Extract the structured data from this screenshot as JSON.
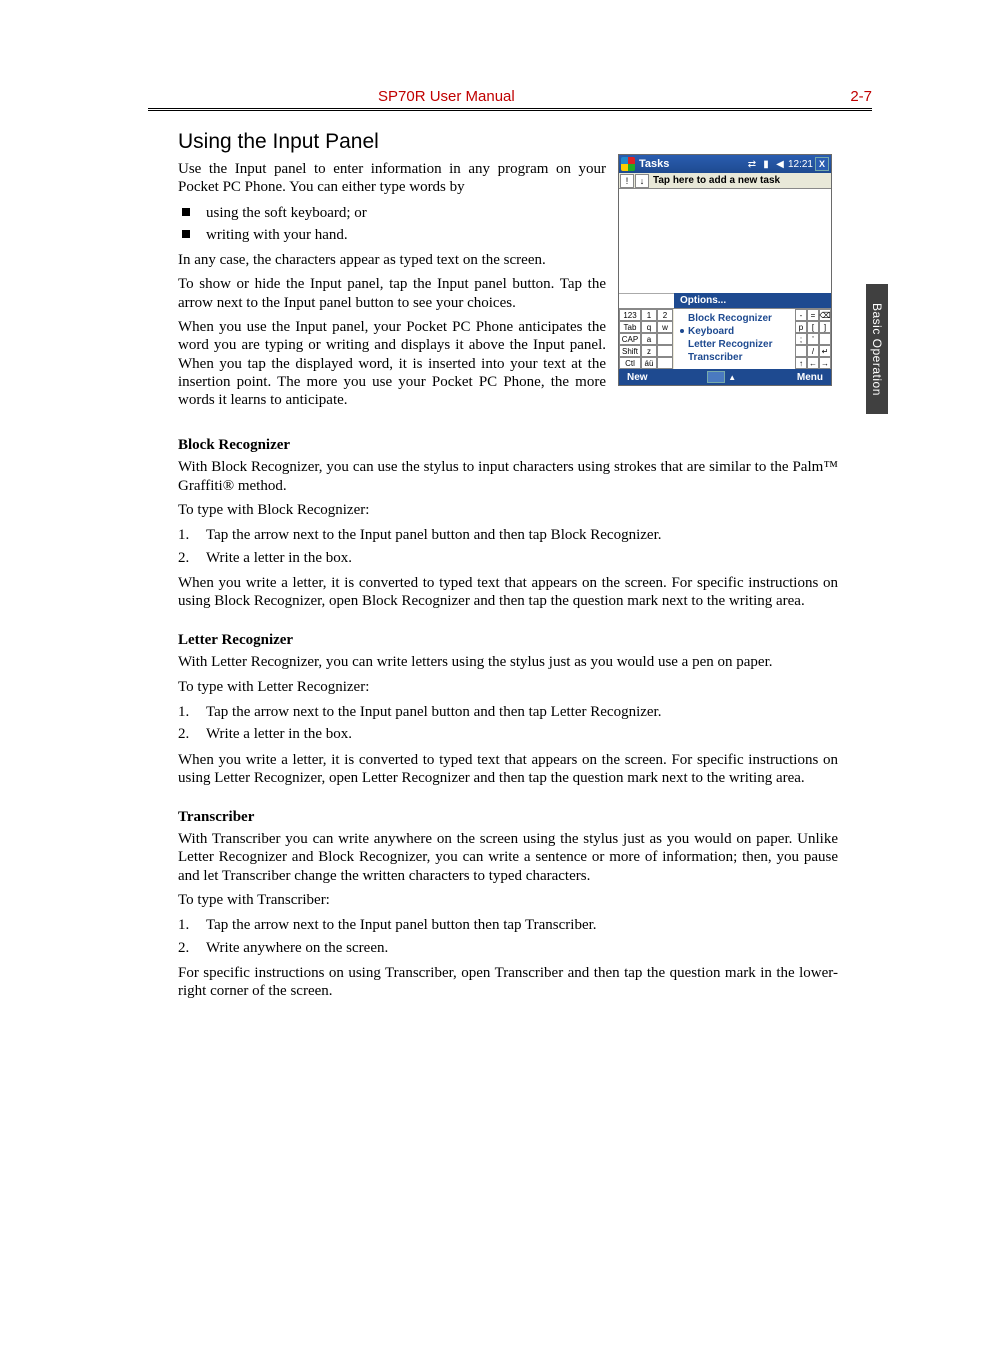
{
  "header": {
    "title": "SP70R User Manual",
    "page_label": "2-7",
    "title_color": "#c00000"
  },
  "side_tab": {
    "label": "Basic Operation",
    "bg": "#404040"
  },
  "h1": "Using the Input Panel",
  "intro": "Use the Input panel to enter information in any program on your Pocket PC Phone. You can either type  words by",
  "intro_bullets": [
    "using the soft keyboard; or",
    "writing with your hand."
  ],
  "p_anycase": "In any case, the characters appear as typed text on the screen.",
  "p_showhide": "To show or hide the Input panel, tap the Input panel button. Tap the arrow next to the Input panel button to see your choices.",
  "p_anticipate": "When you use the Input panel, your Pocket PC Phone anticipates the word you are typing or writing and displays it above the Input panel. When you tap the displayed word, it is inserted into your text at the insertion point. The more you use your Pocket PC Phone, the more words it learns to anticipate.",
  "block": {
    "h": "Block Recognizer",
    "p1": "With Block Recognizer, you can use the stylus to input characters using strokes that are similar to the Palm™ Graffiti® method.",
    "p2": "To type with Block Recognizer:",
    "steps": [
      "Tap the arrow next to the Input panel button and then tap Block Recognizer.",
      "Write a letter in the box."
    ],
    "p3": "When you write a letter, it is converted to typed text that appears on the screen. For specific instructions on using Block Recognizer, open Block Recognizer and then tap the question mark next to the writing area."
  },
  "letter": {
    "h": "Letter Recognizer",
    "p1": "With Letter Recognizer, you can write letters using the stylus just as you would use a pen on paper.",
    "p2": "To type with Letter Recognizer:",
    "steps": [
      "Tap the arrow next to the Input panel button and then tap Letter Recognizer.",
      "Write a letter in the box."
    ],
    "p3": "When you write a letter, it is converted to typed text that appears on the screen. For specific instructions on using Letter Recognizer, open Letter Recognizer and then tap the question mark next to the writing area."
  },
  "transcriber": {
    "h": "Transcriber",
    "p1": "With Transcriber you can write anywhere on the screen using the stylus just as you would on paper. Unlike Letter Recognizer and Block Recognizer, you can write a sentence or more of information; then, you pause and let Transcriber change the written characters to typed characters.",
    "p2": "To type with Transcriber:",
    "steps": [
      "Tap the arrow next to the Input panel button then tap Transcriber.",
      "Write anywhere on the screen."
    ],
    "p3": "For specific instructions on using Transcriber, open Transcriber and then tap the question mark in the lower-right corner of the screen."
  },
  "device": {
    "title": "Tasks",
    "clock": "12:21",
    "close": "X",
    "priority_btn": "!",
    "sort_btn": "↓",
    "tap_hint": "Tap here to add a new task",
    "options_label": "Options...",
    "menu": {
      "items": [
        "Block Recognizer",
        "Keyboard",
        "Letter Recognizer",
        "Transcriber"
      ],
      "selected_index": 1
    },
    "left_keys": [
      [
        "123",
        "1",
        "2"
      ],
      [
        "Tab",
        "q",
        "w"
      ],
      [
        "CAP",
        "a",
        ""
      ],
      [
        "Shift",
        "z",
        ""
      ],
      [
        "Ctl",
        "áü",
        ""
      ]
    ],
    "right_keys": [
      [
        "-",
        "=",
        "⌫"
      ],
      [
        "p",
        "[",
        "]"
      ],
      [
        ";",
        "'",
        ""
      ],
      [
        "",
        "/",
        "↵"
      ],
      [
        "↑",
        "←",
        "→"
      ]
    ],
    "bottom": {
      "new": "New",
      "menu": "Menu"
    },
    "colors": {
      "titlebar": "#1e4a90",
      "menu_text": "#1e4a90",
      "toolbar_bg": "#e8e8d8"
    }
  }
}
